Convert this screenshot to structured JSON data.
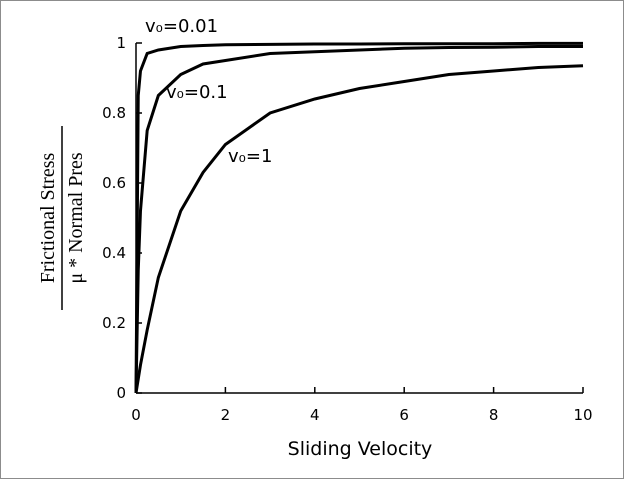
{
  "chart_data": {
    "type": "line",
    "x_label": "Sliding Velocity",
    "y_label_top": "Frictional Stress",
    "y_label_bottom": "μ * Normal Pres",
    "x": [
      0,
      0.05,
      0.1,
      0.25,
      0.5,
      1,
      1.5,
      2,
      3,
      4,
      5,
      6,
      7,
      8,
      9,
      10
    ],
    "series": [
      {
        "name": "v₀=0.01",
        "color": "#000000",
        "values": [
          0,
          0.85,
          0.92,
          0.97,
          0.98,
          0.99,
          0.993,
          0.995,
          0.996,
          0.997,
          0.997,
          0.998,
          0.998,
          0.998,
          0.999,
          0.999
        ]
      },
      {
        "name": "v₀=0.1",
        "color": "#000000",
        "values": [
          0,
          0.35,
          0.52,
          0.75,
          0.85,
          0.91,
          0.94,
          0.95,
          0.97,
          0.975,
          0.98,
          0.985,
          0.987,
          0.988,
          0.99,
          0.99
        ]
      },
      {
        "name": "v₀=1",
        "color": "#000000",
        "values": [
          0,
          0.04,
          0.08,
          0.18,
          0.33,
          0.52,
          0.63,
          0.71,
          0.8,
          0.84,
          0.87,
          0.89,
          0.91,
          0.92,
          0.93,
          0.935
        ]
      }
    ],
    "xlim": [
      0,
      10
    ],
    "ylim": [
      0,
      1
    ],
    "xticks": [
      0,
      2,
      4,
      6,
      8,
      10
    ],
    "yticks": [
      0,
      0.2,
      0.4,
      0.6,
      0.8,
      1
    ]
  }
}
